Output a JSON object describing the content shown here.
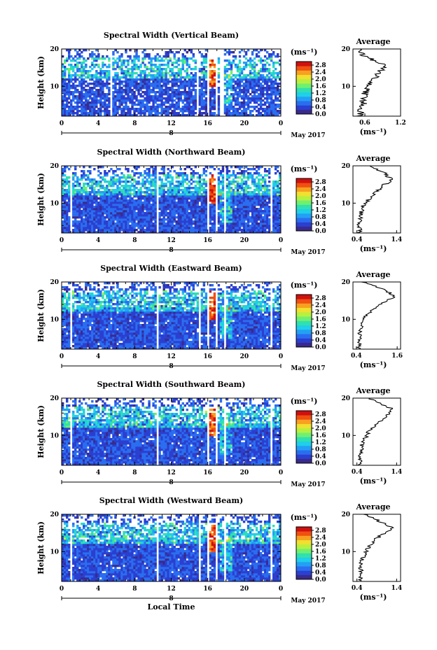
{
  "chart_data": [
    {
      "type": "heatmap",
      "title": "Spectral Width (Vertical Beam)",
      "ylabel": "Height (km)",
      "x_ticks": [
        "0",
        "4",
        "8",
        "12",
        "16",
        "20",
        "0"
      ],
      "xlim": [
        0,
        24
      ],
      "ylim": [
        2,
        20
      ],
      "y_ticks": [
        "20",
        "10"
      ],
      "date_marker": "8",
      "date_label": "May 2017",
      "colorbar_unit": "(ms⁻¹)",
      "colorbar_ticks": [
        "2.8",
        "2.4",
        "2.0",
        "1.6",
        "1.2",
        "0.8",
        "0.4",
        "0.0"
      ],
      "colorbar_range": [
        0.0,
        3.0
      ],
      "gaps_hours": [
        [
          5.3,
          5.5
        ],
        [
          14.7,
          14.9
        ],
        [
          15.9,
          16.1
        ],
        [
          16.9,
          17.1
        ],
        [
          17.3,
          17.7
        ]
      ],
      "avg_profile": {
        "title": "Average",
        "xlabel": "(ms⁻¹)",
        "x_ticks": [
          "0.6",
          "1.2"
        ],
        "xlim": [
          0.4,
          1.2
        ],
        "y_ticks": [
          "20",
          "10"
        ],
        "height_km": [
          2,
          3,
          4,
          5,
          6,
          7,
          8,
          9,
          10,
          11,
          12,
          13,
          14,
          15,
          16,
          17,
          18,
          19,
          20
        ],
        "width": [
          0.5,
          0.55,
          0.5,
          0.6,
          0.55,
          0.58,
          0.6,
          0.62,
          0.65,
          0.7,
          0.75,
          0.8,
          0.85,
          0.95,
          0.9,
          0.75,
          0.6,
          0.55,
          0.5
        ]
      }
    },
    {
      "type": "heatmap",
      "title": "Spectral Width (Northward Beam)",
      "ylabel": "Height (km)",
      "x_ticks": [
        "0",
        "4",
        "8",
        "12",
        "16",
        "20",
        "0"
      ],
      "xlim": [
        0,
        24
      ],
      "ylim": [
        2,
        20
      ],
      "y_ticks": [
        "20",
        "10"
      ],
      "date_marker": "8",
      "date_label": "May 2017",
      "colorbar_unit": "(ms⁻¹)",
      "colorbar_ticks": [
        "2.8",
        "2.4",
        "2.0",
        "1.6",
        "1.2",
        "0.8",
        "0.4",
        "0.0"
      ],
      "colorbar_range": [
        0.0,
        3.0
      ],
      "gaps_hours": [
        [
          1.0,
          1.2
        ],
        [
          5.9,
          6.1
        ],
        [
          10.3,
          10.5
        ],
        [
          15.9,
          16.1
        ],
        [
          16.9,
          17.1
        ],
        [
          17.8,
          18.1
        ],
        [
          22.8,
          23.0
        ]
      ],
      "avg_profile": {
        "title": "Average",
        "xlabel": "(ms⁻¹)",
        "x_ticks": [
          "0.4",
          "1.4"
        ],
        "xlim": [
          0.3,
          1.5
        ],
        "y_ticks": [
          "20",
          "10"
        ],
        "height_km": [
          2,
          3,
          4,
          5,
          6,
          7,
          8,
          9,
          10,
          11,
          12,
          13,
          14,
          15,
          16,
          17,
          18,
          19,
          20
        ],
        "width": [
          0.45,
          0.5,
          0.45,
          0.5,
          0.48,
          0.5,
          0.52,
          0.55,
          0.6,
          0.7,
          0.8,
          0.9,
          1.0,
          1.1,
          1.3,
          1.2,
          1.1,
          0.9,
          0.7
        ]
      }
    },
    {
      "type": "heatmap",
      "title": "Spectral Width (Eastward Beam)",
      "ylabel": "Height (km)",
      "x_ticks": [
        "0",
        "4",
        "8",
        "12",
        "16",
        "20",
        "0"
      ],
      "xlim": [
        0,
        24
      ],
      "ylim": [
        2,
        20
      ],
      "y_ticks": [
        "20",
        "10"
      ],
      "date_marker": "8",
      "date_label": "May 2017",
      "colorbar_unit": "(ms⁻¹)",
      "colorbar_ticks": [
        "2.8",
        "2.4",
        "2.0",
        "1.6",
        "1.2",
        "0.8",
        "0.4",
        "0.0"
      ],
      "colorbar_range": [
        0.0,
        3.0
      ],
      "gaps_hours": [
        [
          1.0,
          1.2
        ],
        [
          5.9,
          6.1
        ],
        [
          10.3,
          10.5
        ],
        [
          15.0,
          15.2
        ],
        [
          15.9,
          16.1
        ],
        [
          16.9,
          17.1
        ],
        [
          17.8,
          18.1
        ],
        [
          22.8,
          23.0
        ]
      ],
      "avg_profile": {
        "title": "Average",
        "xlabel": "(ms⁻¹)",
        "x_ticks": [
          "0.4",
          "1.6"
        ],
        "xlim": [
          0.3,
          1.7
        ],
        "y_ticks": [
          "20",
          "10"
        ],
        "height_km": [
          2,
          3,
          4,
          5,
          6,
          7,
          8,
          9,
          10,
          11,
          12,
          13,
          14,
          15,
          16,
          17,
          18,
          19,
          20
        ],
        "width": [
          0.45,
          0.5,
          0.48,
          0.5,
          0.5,
          0.52,
          0.55,
          0.58,
          0.62,
          0.7,
          0.8,
          0.95,
          1.1,
          1.3,
          1.5,
          1.4,
          1.2,
          0.9,
          0.6
        ]
      }
    },
    {
      "type": "heatmap",
      "title": "Spectral Width (Southward Beam)",
      "ylabel": "Height (km)",
      "x_ticks": [
        "0",
        "4",
        "8",
        "12",
        "16",
        "20",
        "0"
      ],
      "xlim": [
        0,
        24
      ],
      "ylim": [
        2,
        20
      ],
      "y_ticks": [
        "20",
        "10"
      ],
      "date_marker": "8",
      "date_label": "May 2017",
      "colorbar_unit": "(ms⁻¹)",
      "colorbar_ticks": [
        "2.8",
        "2.4",
        "2.0",
        "1.6",
        "1.2",
        "0.8",
        "0.4",
        "0.0"
      ],
      "colorbar_range": [
        0.0,
        3.0
      ],
      "gaps_hours": [
        [
          1.0,
          1.2
        ],
        [
          5.9,
          6.1
        ],
        [
          10.3,
          10.5
        ],
        [
          15.9,
          16.1
        ],
        [
          16.9,
          17.1
        ],
        [
          17.8,
          18.1
        ],
        [
          22.8,
          23.0
        ]
      ],
      "avg_profile": {
        "title": "Average",
        "xlabel": "(ms⁻¹)",
        "x_ticks": [
          "0.4",
          "1.4"
        ],
        "xlim": [
          0.3,
          1.5
        ],
        "y_ticks": [
          "20",
          "10"
        ],
        "height_km": [
          2,
          3,
          4,
          5,
          6,
          7,
          8,
          9,
          10,
          11,
          12,
          13,
          14,
          15,
          16,
          17,
          18,
          19,
          20
        ],
        "width": [
          0.45,
          0.5,
          0.48,
          0.5,
          0.5,
          0.52,
          0.55,
          0.6,
          0.65,
          0.7,
          0.8,
          0.9,
          1.0,
          1.1,
          1.2,
          1.3,
          1.1,
          0.9,
          0.7
        ]
      }
    },
    {
      "type": "heatmap",
      "title": "Spectral Width (Westward Beam)",
      "ylabel": "Height (km)",
      "x_ticks": [
        "0",
        "4",
        "8",
        "12",
        "16",
        "20",
        "0"
      ],
      "xlim": [
        0,
        24
      ],
      "ylim": [
        2,
        20
      ],
      "y_ticks": [
        "20",
        "10"
      ],
      "date_marker": "8",
      "date_label": "May 2017",
      "xlabel": "Local Time",
      "colorbar_unit": "(ms⁻¹)",
      "colorbar_ticks": [
        "2.8",
        "2.4",
        "2.0",
        "1.6",
        "1.2",
        "0.8",
        "0.4",
        "0.0"
      ],
      "colorbar_range": [
        0.0,
        3.0
      ],
      "gaps_hours": [
        [
          1.0,
          1.2
        ],
        [
          5.9,
          6.1
        ],
        [
          10.3,
          10.5
        ],
        [
          15.0,
          15.2
        ],
        [
          15.9,
          16.1
        ],
        [
          16.9,
          17.1
        ],
        [
          17.8,
          18.1
        ],
        [
          22.8,
          23.0
        ]
      ],
      "avg_profile": {
        "title": "Average",
        "xlabel": "(ms⁻¹)",
        "x_ticks": [
          "0.4",
          "1.4"
        ],
        "xlim": [
          0.3,
          1.5
        ],
        "y_ticks": [
          "20",
          "10"
        ],
        "height_km": [
          2,
          3,
          4,
          5,
          6,
          7,
          8,
          9,
          10,
          11,
          12,
          13,
          14,
          15,
          16,
          17,
          18,
          19,
          20
        ],
        "width": [
          0.45,
          0.5,
          0.48,
          0.5,
          0.5,
          0.52,
          0.55,
          0.6,
          0.62,
          0.68,
          0.75,
          0.85,
          0.95,
          1.1,
          1.3,
          1.2,
          1.0,
          0.8,
          0.6
        ]
      }
    }
  ],
  "colors": {
    "colormap": [
      "#3a2a8a",
      "#2b3fd0",
      "#2a6ef0",
      "#23a0f5",
      "#1fd0e8",
      "#30e0b0",
      "#70f070",
      "#b8f040",
      "#f0e030",
      "#f8a020",
      "#f05010",
      "#d01010"
    ]
  }
}
